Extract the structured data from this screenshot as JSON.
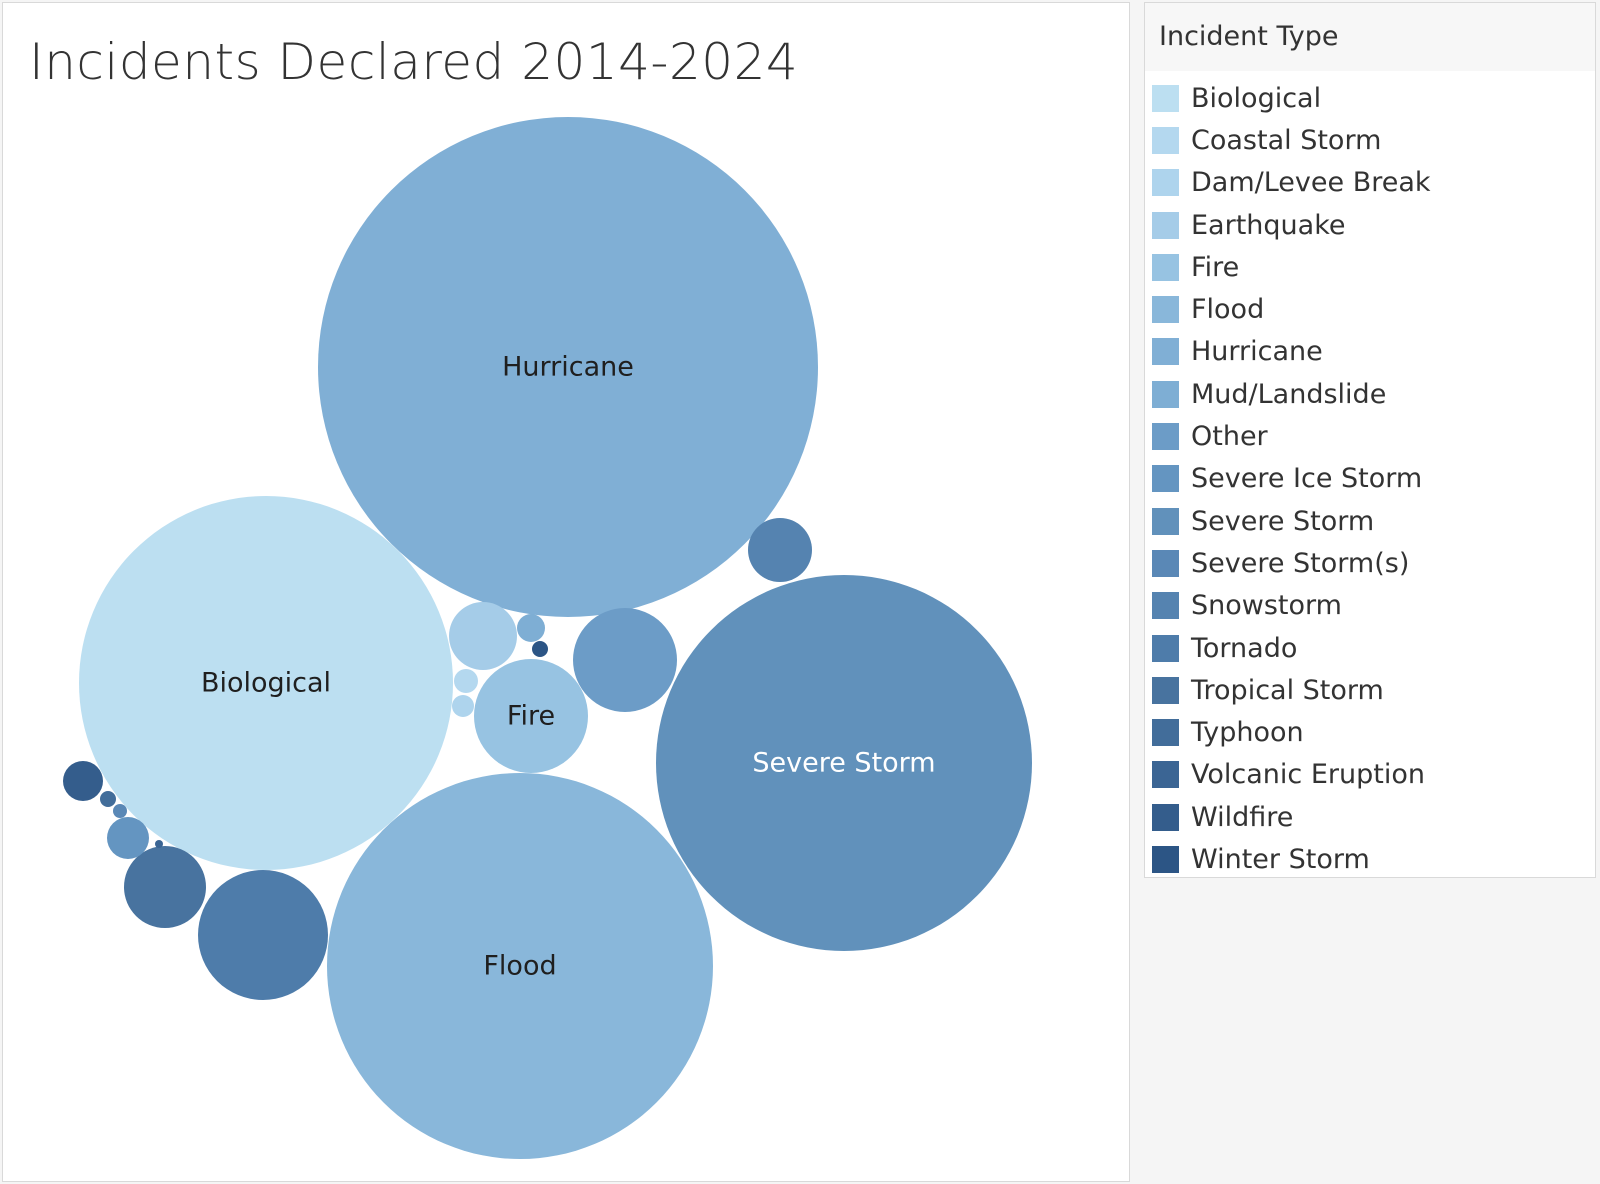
{
  "chart_data": {
    "type": "bubble",
    "title": "Incidents Declared 2014-2024",
    "legend_title": "Incident Type",
    "legend_position": "right",
    "bubbles": [
      {
        "label": "Hurricane",
        "category": "Hurricane",
        "color": "#80afd5",
        "text_color": "#1f1f1f"
      },
      {
        "label": "Severe Storm",
        "category": "Severe Storm",
        "color": "#6191bb",
        "text_color": "#ffffff"
      },
      {
        "label": "Flood",
        "category": "Flood",
        "color": "#89b7da",
        "text_color": "#1f1f1f"
      },
      {
        "label": "Biological",
        "category": "Biological",
        "color": "#bcdff1",
        "text_color": "#1f1f1f"
      },
      {
        "label": "Fire",
        "category": "Fire",
        "color": "#97c3e2",
        "text_color": "#1f1f1f"
      },
      {
        "label": "",
        "category": "Tornado",
        "color": "#4e7caa",
        "text_color": ""
      },
      {
        "label": "",
        "category": "Other",
        "color": "#6c9cc7",
        "text_color": ""
      },
      {
        "label": "",
        "category": "Tropical Storm",
        "color": "#48739f",
        "text_color": ""
      },
      {
        "label": "",
        "category": "Snowstorm",
        "color": "#5583b0",
        "text_color": ""
      },
      {
        "label": "",
        "category": "Severe Ice Storm",
        "color": "#6495c1",
        "text_color": ""
      },
      {
        "label": "",
        "category": "Earthquake",
        "color": "#a5cce8",
        "text_color": ""
      },
      {
        "label": "",
        "category": "Wildfire",
        "color": "#345d8c",
        "text_color": ""
      },
      {
        "label": "",
        "category": "Typhoon",
        "color": "#426d9a",
        "text_color": ""
      },
      {
        "label": "",
        "category": "Mud/Landslide",
        "color": "#7eaed4",
        "text_color": ""
      },
      {
        "label": "",
        "category": "Coastal Storm",
        "color": "#b4d8ef",
        "text_color": ""
      },
      {
        "label": "",
        "category": "Dam/Levee Break",
        "color": "#aed4ed",
        "text_color": ""
      },
      {
        "label": "",
        "category": "Severe Storm(s)",
        "color": "#5a88b6",
        "text_color": ""
      },
      {
        "label": "",
        "category": "Winter Storm",
        "color": "#2c5585",
        "text_color": ""
      },
      {
        "label": "",
        "category": "Volcanic Eruption",
        "color": "#3b6594",
        "text_color": ""
      }
    ],
    "legend": [
      {
        "label": "Biological",
        "color": "#bcdff1"
      },
      {
        "label": "Coastal Storm",
        "color": "#b4d8ef"
      },
      {
        "label": "Dam/Levee Break",
        "color": "#aed4ed"
      },
      {
        "label": "Earthquake",
        "color": "#a5cce8"
      },
      {
        "label": "Fire",
        "color": "#97c3e2"
      },
      {
        "label": "Flood",
        "color": "#89b7da"
      },
      {
        "label": "Hurricane",
        "color": "#80afd5"
      },
      {
        "label": "Mud/Landslide",
        "color": "#7eaed4"
      },
      {
        "label": "Other",
        "color": "#6c9cc7"
      },
      {
        "label": "Severe Ice Storm",
        "color": "#6495c1"
      },
      {
        "label": "Severe Storm",
        "color": "#6191bb"
      },
      {
        "label": "Severe Storm(s)",
        "color": "#5a88b6"
      },
      {
        "label": "Snowstorm",
        "color": "#5583b0"
      },
      {
        "label": "Tornado",
        "color": "#4e7caa"
      },
      {
        "label": "Tropical Storm",
        "color": "#48739f"
      },
      {
        "label": "Typhoon",
        "color": "#426d9a"
      },
      {
        "label": "Volcanic Eruption",
        "color": "#3b6594"
      },
      {
        "label": "Wildfire",
        "color": "#345d8c"
      },
      {
        "label": "Winter Storm",
        "color": "#2c5585"
      }
    ]
  }
}
